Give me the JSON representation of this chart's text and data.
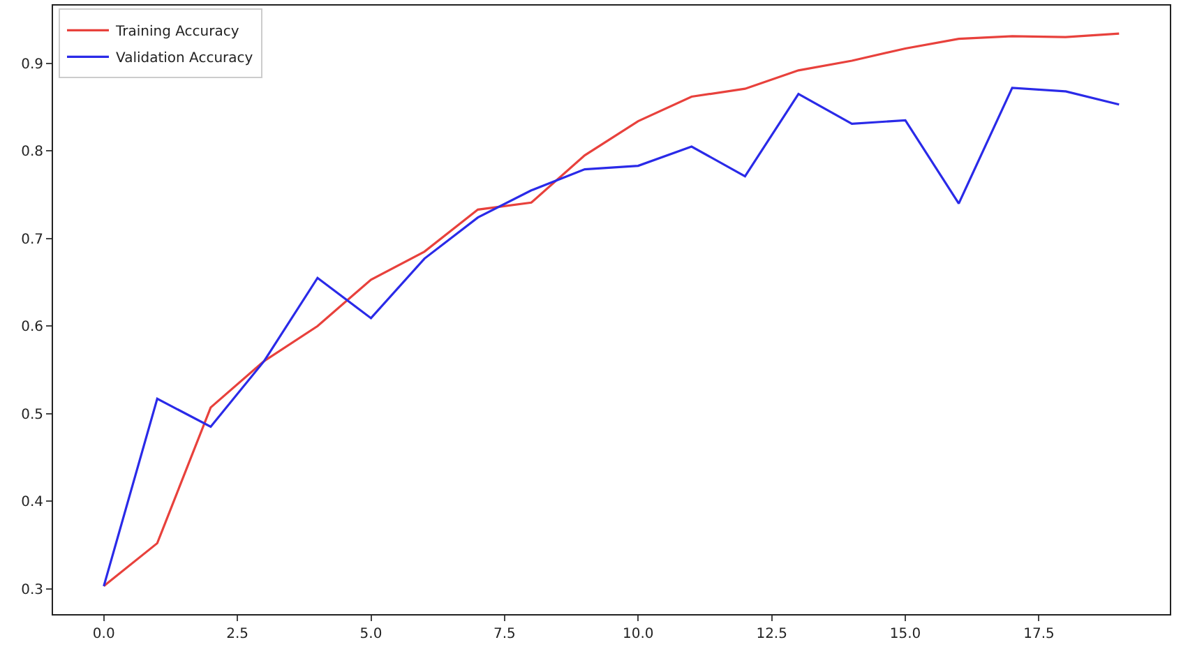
{
  "chart_data": {
    "type": "line",
    "x": [
      0,
      1,
      2,
      3,
      4,
      5,
      6,
      7,
      8,
      9,
      10,
      11,
      12,
      13,
      14,
      15,
      16,
      17,
      18,
      19
    ],
    "series": [
      {
        "name": "Training Accuracy",
        "color": "#e8413c",
        "values": [
          0.303,
          0.352,
          0.507,
          0.56,
          0.6,
          0.653,
          0.685,
          0.733,
          0.741,
          0.795,
          0.834,
          0.862,
          0.871,
          0.892,
          0.903,
          0.917,
          0.928,
          0.931,
          0.93,
          0.934
        ]
      },
      {
        "name": "Validation Accuracy",
        "color": "#2a2ae8",
        "values": [
          0.303,
          0.517,
          0.485,
          0.56,
          0.655,
          0.609,
          0.677,
          0.724,
          0.755,
          0.779,
          0.783,
          0.805,
          0.771,
          0.865,
          0.831,
          0.835,
          0.74,
          0.872,
          0.868,
          0.853
        ]
      }
    ],
    "xlim": [
      -0.95,
      19.95
    ],
    "xticks": [
      {
        "value": 0,
        "label": "0.0"
      },
      {
        "value": 2.5,
        "label": "2.5"
      },
      {
        "value": 5,
        "label": "5.0"
      },
      {
        "value": 7.5,
        "label": "7.5"
      },
      {
        "value": 10,
        "label": "10.0"
      },
      {
        "value": 12.5,
        "label": "12.5"
      },
      {
        "value": 15,
        "label": "15.0"
      },
      {
        "value": 17.5,
        "label": "17.5"
      }
    ],
    "ylim": [
      0.271,
      0.966
    ],
    "yticks": [
      0.3,
      0.4,
      0.5,
      0.6,
      0.7,
      0.8,
      0.9
    ],
    "legend": "top left",
    "marker": "none",
    "line_style": "solid"
  }
}
